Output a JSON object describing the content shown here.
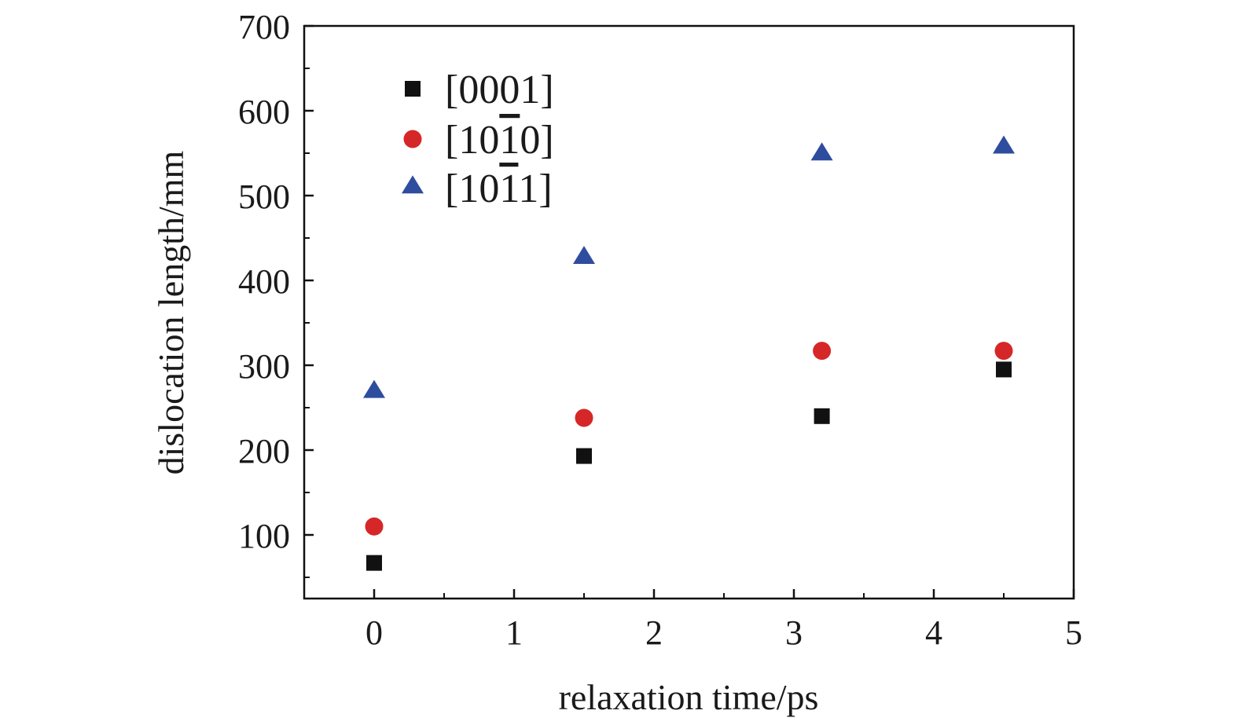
{
  "chart_data": {
    "type": "scatter",
    "xlabel": "relaxation time/ps",
    "ylabel": "dislocation length/mm",
    "xlim": [
      -0.5,
      5
    ],
    "ylim": [
      25,
      700
    ],
    "x_ticks": [
      "0",
      "1",
      "2",
      "3",
      "4",
      "5"
    ],
    "y_ticks": [
      "100",
      "200",
      "300",
      "400",
      "500",
      "600",
      "700"
    ],
    "grid": false,
    "legend_position": "top-left",
    "series": [
      {
        "name": "[0001]",
        "marker": "square",
        "color": "#111111",
        "points": [
          [
            0,
            67
          ],
          [
            1.5,
            193
          ],
          [
            3.2,
            240
          ],
          [
            4.5,
            295
          ]
        ]
      },
      {
        "name": "[10¯10]",
        "marker": "circle",
        "color": "#d62728",
        "points": [
          [
            0,
            110
          ],
          [
            1.5,
            238
          ],
          [
            3.2,
            317
          ],
          [
            4.5,
            317
          ]
        ]
      },
      {
        "name": "[10¯11]",
        "marker": "triangle",
        "color": "#2f4d9e",
        "points": [
          [
            0,
            270
          ],
          [
            1.5,
            428
          ],
          [
            3.2,
            550
          ],
          [
            4.5,
            558
          ]
        ]
      }
    ]
  },
  "legend_labels": {
    "s0": {
      "open": "[",
      "pre": "0001",
      "bar": "",
      "post": "",
      "close": "]"
    },
    "s1": {
      "open": "[",
      "pre": "10",
      "bar": "1",
      "post": "0",
      "close": "]"
    },
    "s2": {
      "open": "[",
      "pre": "10",
      "bar": "1",
      "post": "1",
      "close": "]"
    }
  }
}
